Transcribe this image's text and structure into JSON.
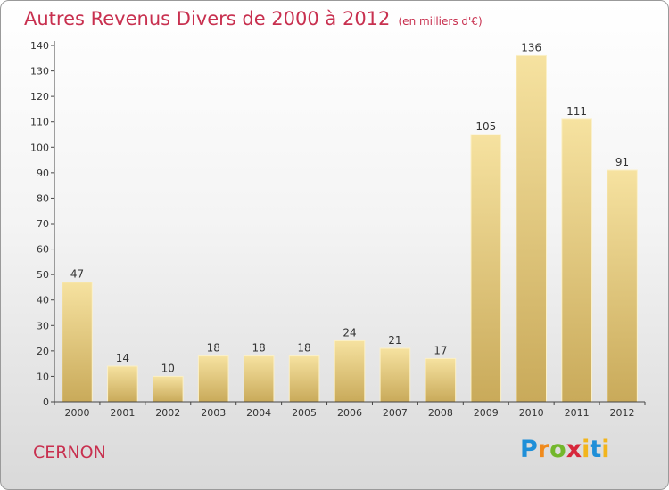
{
  "title": "Autres Revenus Divers de 2000 à 2012",
  "subtitle": "(en milliers d'€)",
  "commune": "CERNON",
  "brand": "Proxiti",
  "colors": {
    "title": "#c8304f",
    "bar_light": "#f6e2a0",
    "bar_dark": "#c9aa5a",
    "axis": "#444444"
  },
  "chart_data": {
    "type": "bar",
    "categories": [
      "2000",
      "2001",
      "2002",
      "2003",
      "2004",
      "2005",
      "2006",
      "2007",
      "2008",
      "2009",
      "2010",
      "2011",
      "2012"
    ],
    "values": [
      47,
      14,
      10,
      18,
      18,
      18,
      24,
      21,
      17,
      105,
      136,
      111,
      91
    ],
    "data_labels": [
      "47",
      "14",
      "10",
      "18",
      "18",
      "18",
      "24",
      "21",
      "17",
      "105",
      "136",
      "111",
      "91"
    ],
    "y_ticks": [
      0,
      10,
      20,
      30,
      40,
      50,
      60,
      70,
      80,
      90,
      100,
      110,
      120,
      130,
      140
    ],
    "ylim": [
      0,
      140
    ],
    "grid": false,
    "xlabel": "",
    "ylabel": ""
  }
}
